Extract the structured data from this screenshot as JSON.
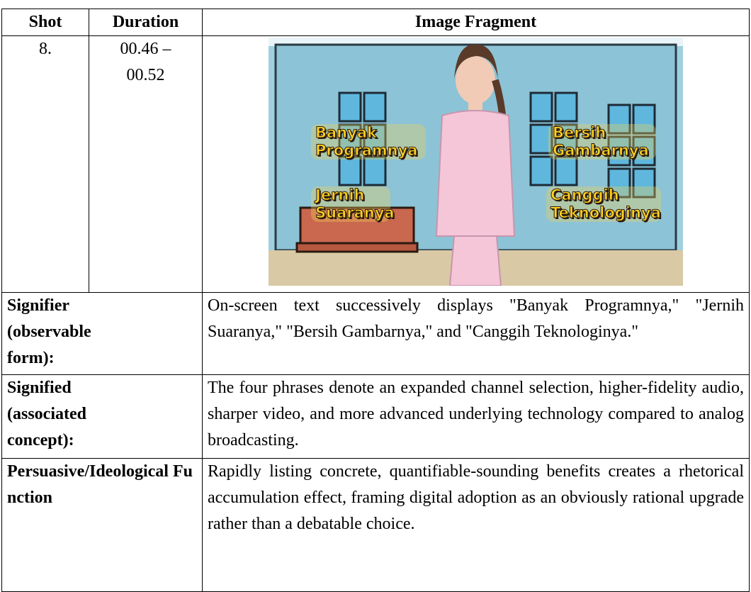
{
  "table": {
    "header": [
      "Shot",
      "Duration",
      "Image Fragment"
    ],
    "shot": "8.",
    "duration": "00.46 – 00.52",
    "image_labels": [
      "Banyak Programnya",
      "Jernih Suaranya",
      "Bersih Gambarnya",
      "Canggih Teknologinya"
    ],
    "rows": [
      [
        "Signifier (observable form):",
        "On-screen text successively displays \"Banyak Programnya,\" \"Jernih Suaranya,\" \"Bersih Gambarnya,\" and \"Canggih Teknologinya.\""
      ],
      [
        "Signified (associated concept):",
        "The four phrases denote an expanded channel selection, higher-fidelity audio, sharper video, and more advanced underlying technology compared to analog broadcasting."
      ],
      [
        "Persuasive/Ideological Function",
        "Rapidly listing concrete, quantifiable-sounding benefits creates a rhetorical accumulation effect, framing digital adoption as an obviously rational upgrade rather than a debatable choice."
      ]
    ]
  }
}
